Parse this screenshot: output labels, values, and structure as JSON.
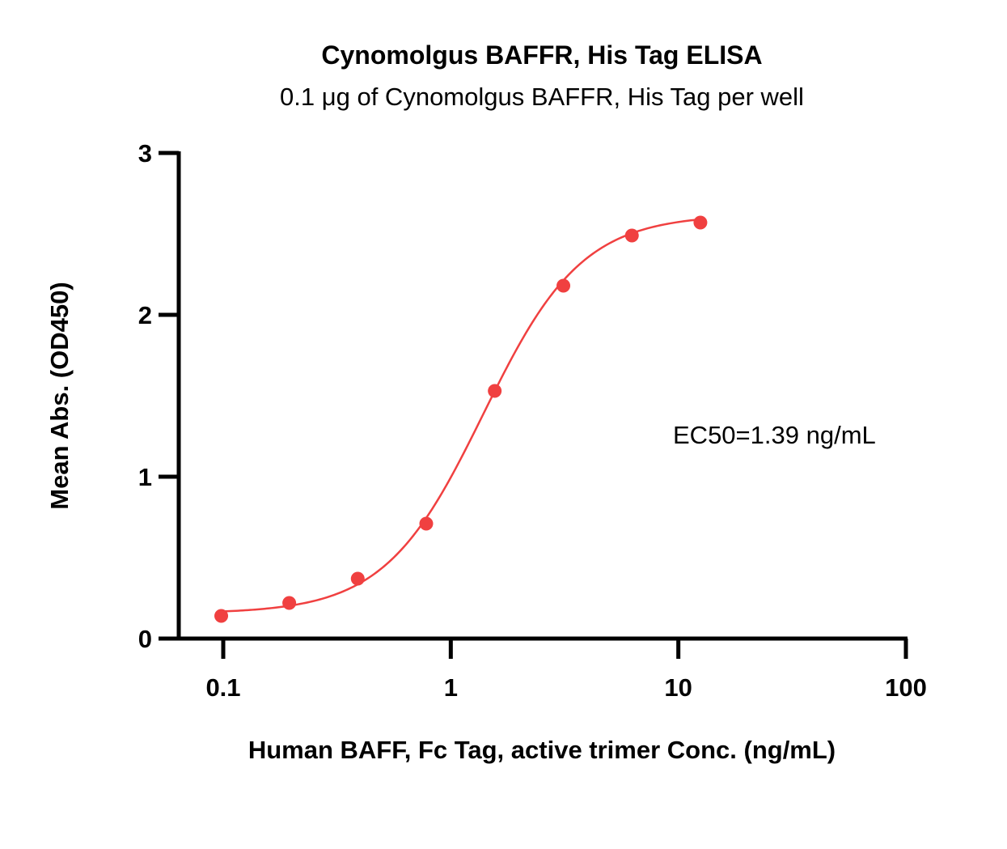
{
  "chart_data": {
    "type": "scatter",
    "title": "Cynomolgus BAFFR, His Tag ELISA",
    "subtitle": "0.1 μg of Cynomolgus BAFFR, His Tag per well",
    "xlabel": "Human BAFF, Fc Tag, active trimer Conc. (ng/mL)",
    "ylabel": "Mean Abs. (OD450)",
    "x_scale": "log",
    "xlim": [
      0.06,
      100
    ],
    "ylim": [
      0,
      3
    ],
    "x_ticks": [
      0.1,
      1,
      10,
      100
    ],
    "x_tick_labels": [
      "0.1",
      "1",
      "10",
      "100"
    ],
    "y_ticks": [
      0,
      1,
      2,
      3
    ],
    "y_tick_labels": [
      "0",
      "1",
      "2",
      "3"
    ],
    "grid": false,
    "legend": "none",
    "series": [
      {
        "color": "#f04040",
        "x": [
          0.098,
          0.195,
          0.39,
          0.78,
          1.56,
          3.125,
          6.25,
          12.5
        ],
        "y": [
          0.14,
          0.22,
          0.37,
          0.71,
          1.53,
          2.18,
          2.49,
          2.57
        ],
        "fit": "4PL",
        "fit_params": {
          "bottom": 0.155,
          "top": 2.62,
          "ec50": 1.39,
          "hill": 2.0
        }
      }
    ],
    "annotations": [
      {
        "text": "EC50=1.39 ng/mL"
      }
    ]
  }
}
